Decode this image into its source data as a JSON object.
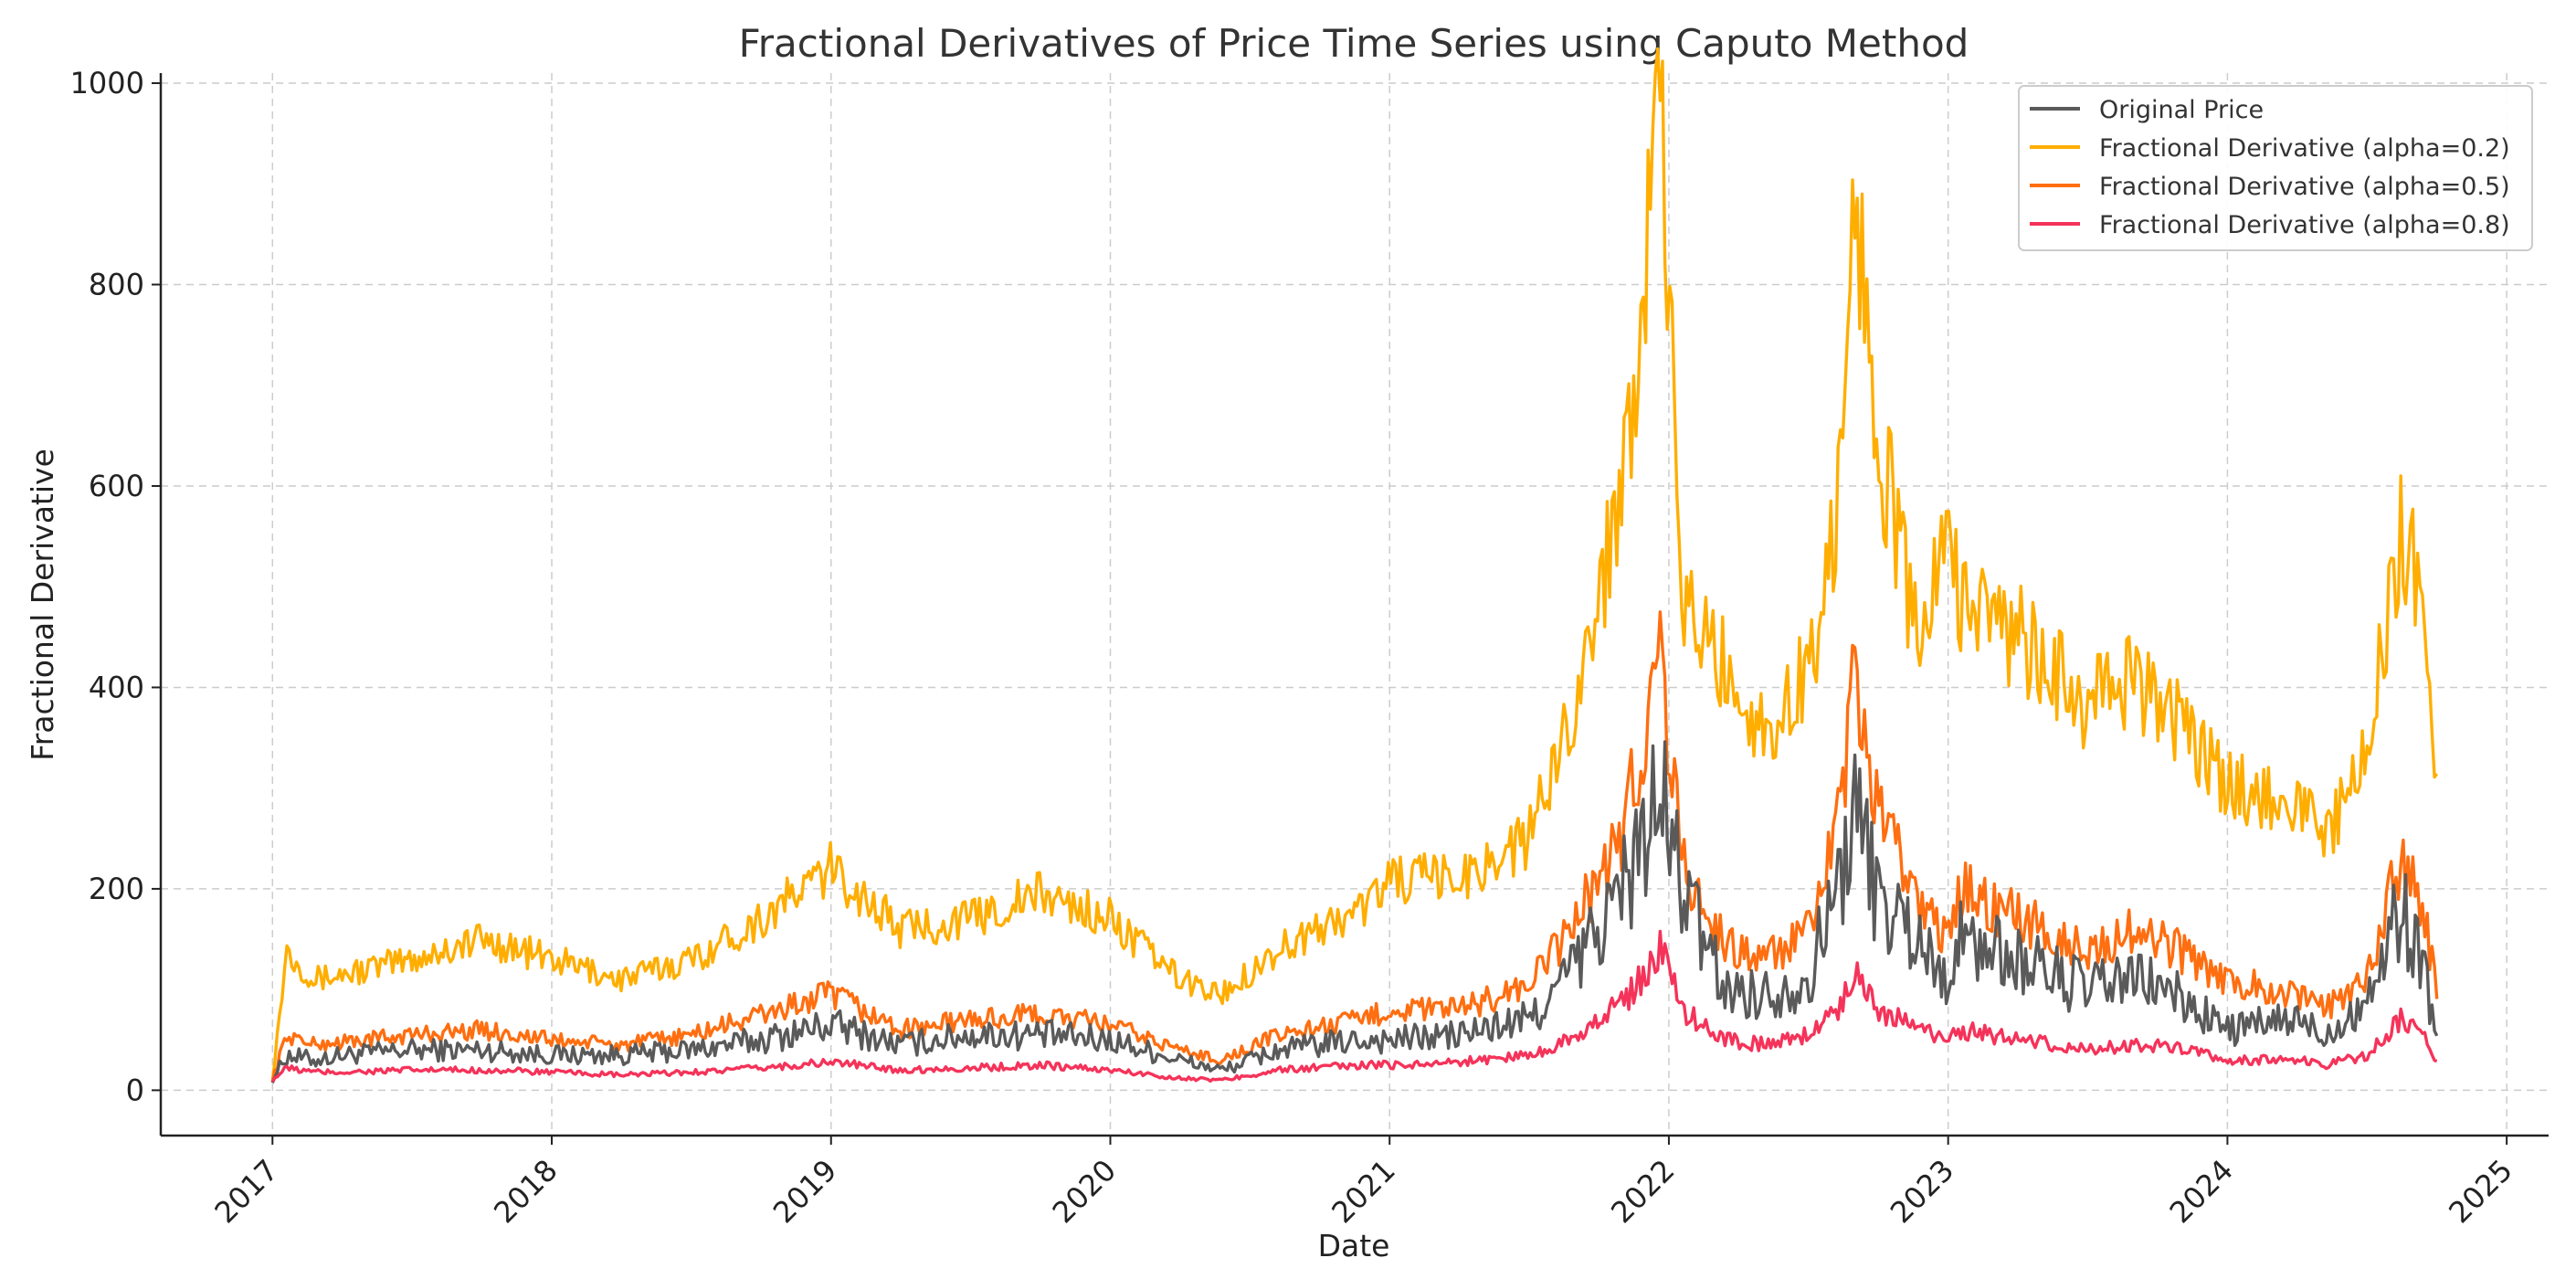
{
  "chart_data": {
    "type": "line",
    "title": "Fractional Derivatives of Price Time Series using Caputo Method",
    "xlabel": "Date",
    "ylabel": "Fractional Derivative",
    "xlim": [
      2016.6,
      2025.15
    ],
    "ylim": [
      -45,
      1010
    ],
    "x_ticks": [
      2017,
      2018,
      2019,
      2020,
      2021,
      2022,
      2023,
      2024,
      2025
    ],
    "x_tick_labels": [
      "2017",
      "2018",
      "2019",
      "2020",
      "2021",
      "2022",
      "2023",
      "2024",
      "2025"
    ],
    "y_ticks": [
      0,
      200,
      400,
      600,
      800,
      1000
    ],
    "y_tick_labels": [
      "0",
      "200",
      "400",
      "600",
      "800",
      "1000"
    ],
    "grid": true,
    "legend_position": "top-right",
    "x": [
      2017.0,
      2017.05,
      2017.15,
      2017.25,
      2017.5,
      2017.75,
      2018.0,
      2018.25,
      2018.5,
      2018.75,
      2019.0,
      2019.25,
      2019.5,
      2019.75,
      2020.0,
      2020.25,
      2020.4,
      2020.6,
      2020.9,
      2021.0,
      2021.25,
      2021.5,
      2021.6,
      2021.75,
      2021.85,
      2021.97,
      2022.05,
      2022.2,
      2022.35,
      2022.5,
      2022.6,
      2022.67,
      2022.75,
      2022.9,
      2022.98,
      2023.05,
      2023.25,
      2023.5,
      2023.65,
      2023.75,
      2024.0,
      2024.25,
      2024.35,
      2024.5,
      2024.62,
      2024.7,
      2024.75
    ],
    "series": [
      {
        "name": "Original Price",
        "color": "#5a5a5a",
        "values": [
          10,
          35,
          30,
          35,
          40,
          40,
          35,
          35,
          40,
          50,
          65,
          45,
          55,
          55,
          50,
          30,
          20,
          40,
          50,
          50,
          55,
          70,
          100,
          160,
          210,
          290,
          200,
          100,
          95,
          110,
          200,
          280,
          190,
          150,
          110,
          150,
          130,
          100,
          110,
          105,
          60,
          70,
          55,
          90,
          180,
          130,
          50
        ]
      },
      {
        "name": "Fractional Derivative (alpha=0.2)",
        "color": "#ffae00",
        "values": [
          10,
          140,
          110,
          115,
          130,
          150,
          130,
          110,
          130,
          170,
          220,
          160,
          170,
          195,
          170,
          110,
          95,
          140,
          180,
          210,
          210,
          250,
          330,
          480,
          650,
          960,
          480,
          420,
          350,
          420,
          560,
          900,
          650,
          430,
          550,
          490,
          450,
          380,
          410,
          390,
          300,
          290,
          250,
          330,
          560,
          480,
          320
        ]
      },
      {
        "name": "Fractional Derivative (alpha=0.5)",
        "color": "#ff6e10",
        "values": [
          10,
          55,
          45,
          48,
          55,
          60,
          50,
          45,
          55,
          75,
          95,
          60,
          70,
          75,
          65,
          40,
          30,
          55,
          70,
          80,
          80,
          105,
          140,
          210,
          270,
          440,
          220,
          145,
          130,
          155,
          250,
          410,
          270,
          190,
          150,
          200,
          170,
          140,
          155,
          150,
          110,
          95,
          80,
          110,
          230,
          180,
          100
        ]
      },
      {
        "name": "Fractional Derivative (alpha=0.8)",
        "color": "#f5335a",
        "values": [
          10,
          22,
          18,
          18,
          20,
          20,
          18,
          15,
          18,
          22,
          28,
          20,
          22,
          25,
          20,
          12,
          10,
          20,
          25,
          25,
          28,
          35,
          45,
          70,
          90,
          140,
          80,
          50,
          45,
          55,
          80,
          120,
          80,
          60,
          50,
          60,
          50,
          40,
          45,
          45,
          30,
          30,
          25,
          35,
          70,
          55,
          25
        ]
      }
    ]
  }
}
